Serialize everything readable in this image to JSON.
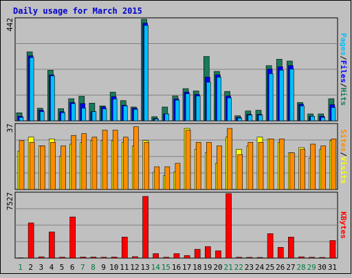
{
  "chart_data": {
    "type": "bar",
    "title": "Daily usage for March 2015",
    "categories": [
      "1",
      "2",
      "3",
      "4",
      "5",
      "6",
      "7",
      "8",
      "9",
      "10",
      "11",
      "12",
      "13",
      "14",
      "15",
      "16",
      "17",
      "18",
      "19",
      "20",
      "21",
      "22",
      "23",
      "24",
      "25",
      "26",
      "27",
      "28",
      "29",
      "30",
      "31"
    ],
    "weekend_days": [
      "1",
      "7",
      "8",
      "14",
      "15",
      "21",
      "22",
      "28",
      "29"
    ],
    "colors": {
      "background": "#c0c0c0",
      "title": "#0000cc",
      "hits": "#1a7a5a",
      "files": "#0000ff",
      "pages": "#00bfff",
      "visits": "#ffff00",
      "sites": "#ff8c00",
      "kbytes": "#ff0000",
      "weekday_label": "#000000",
      "weekend_label": "#007a3d"
    },
    "panels": [
      {
        "max_label": "442",
        "ymax": 442,
        "legend": [
          {
            "key": "pages",
            "text": "Pages"
          },
          {
            "text": "/"
          },
          {
            "key": "files",
            "text": "Files"
          },
          {
            "text": "/"
          },
          {
            "key": "hits",
            "text": "Hits"
          }
        ],
        "series": [
          {
            "key": "hits",
            "values": [
              35,
              300,
              55,
              220,
              53,
              96,
              107,
              77,
              65,
              125,
              88,
              60,
              442,
              18,
              60,
              108,
              140,
              130,
              280,
              215,
              128,
              22,
              43,
              46,
              240,
              268,
              260,
              80,
              30,
              30,
              96
            ]
          },
          {
            "key": "files",
            "values": [
              20,
              283,
              47,
              200,
              40,
              80,
              75,
              40,
              60,
              105,
              68,
              55,
              425,
              10,
              30,
              95,
              125,
              115,
              190,
              200,
              108,
              15,
              28,
              28,
              225,
              235,
              240,
              72,
              20,
              20,
              70
            ]
          },
          {
            "key": "pages",
            "values": [
              15,
              275,
              40,
              195,
              35,
              75,
              55,
              40,
              52,
              95,
              65,
              50,
              415,
              8,
              30,
              90,
              118,
              108,
              168,
              190,
              100,
              12,
              25,
              25,
              205,
              220,
              225,
              65,
              20,
              15,
              58
            ]
          }
        ]
      },
      {
        "max_label": "37",
        "ymax": 37,
        "legend": [
          {
            "key": "sites",
            "text": "Sites"
          },
          {
            "text": "/"
          },
          {
            "key": "visits",
            "text": "Visits"
          }
        ],
        "series": [
          {
            "key": "visits",
            "values": [
              22,
              30,
              25,
              29,
              19,
              26,
              27,
              28,
              28,
              28,
              27,
              25,
              28,
              10,
              8,
              10,
              35,
              23,
              21,
              15,
              30,
              23,
              25,
              30,
              29,
              27,
              21,
              24,
              18,
              23,
              28
            ]
          },
          {
            "key": "sites",
            "values": [
              28,
              27,
              25,
              27,
              25,
              31,
              32,
              30,
              34,
              34,
              30,
              36,
              27,
              13,
              13,
              15,
              34,
              27,
              27,
              25,
              35,
              20,
              27,
              27,
              29,
              29,
              21,
              23,
              26,
              25,
              29
            ]
          }
        ]
      },
      {
        "max_label": "7527",
        "ymax": 7527,
        "legend": [
          {
            "key": "kbytes",
            "text": "KBytes"
          }
        ],
        "series": [
          {
            "key": "kbytes",
            "values": [
              40,
              4100,
              150,
              3050,
              110,
              4800,
              120,
              120,
              100,
              120,
              2450,
              170,
              7200,
              520,
              100,
              520,
              300,
              1030,
              1350,
              850,
              7527,
              100,
              90,
              80,
              2850,
              1250,
              2450,
              150,
              100,
              80,
              2050
            ]
          }
        ]
      }
    ]
  }
}
